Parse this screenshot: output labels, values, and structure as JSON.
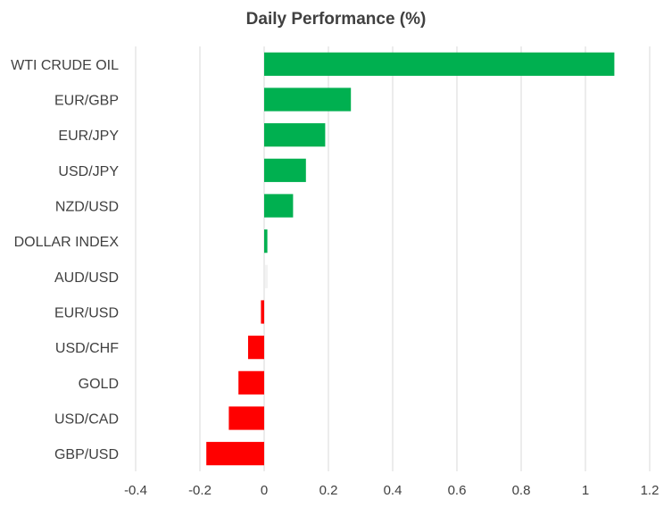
{
  "chart_data": {
    "type": "bar",
    "orientation": "horizontal",
    "title": "Daily Performance  (%)",
    "categories": [
      "WTI CRUDE OIL",
      "EUR/GBP",
      "EUR/JPY",
      "USD/JPY",
      "NZD/USD",
      "DOLLAR INDEX",
      "AUD/USD",
      "EUR/USD",
      "USD/CHF",
      "GOLD",
      "USD/CAD",
      "GBP/USD"
    ],
    "values": [
      1.09,
      0.27,
      0.19,
      0.13,
      0.09,
      0.01,
      0.0,
      -0.01,
      -0.05,
      -0.08,
      -0.11,
      -0.18
    ],
    "xlim": [
      -0.4,
      1.2
    ],
    "x_ticks": [
      "-0.4",
      "-0.2",
      "0",
      "0.2",
      "0.4",
      "0.6",
      "0.8",
      "1",
      "1.2"
    ],
    "xlabel": "",
    "ylabel": "",
    "grid": "vertical",
    "legend": "none",
    "colors": {
      "positive": "#00b050",
      "negative": "#ff0000",
      "zero": "#f2f2f2",
      "grid": "#d9d9d9",
      "text": "#404040"
    }
  }
}
